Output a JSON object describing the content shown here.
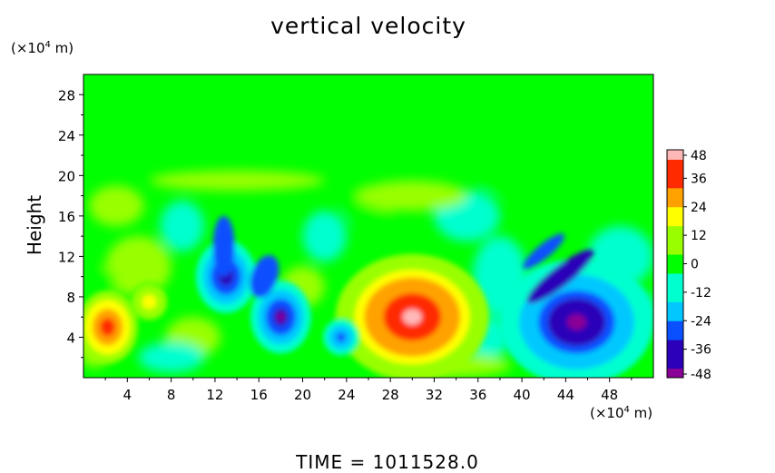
{
  "title": "vertical velocity",
  "y_unit": {
    "prefix": "(×10",
    "exp": "4",
    "suffix": " m)"
  },
  "x_unit": {
    "prefix": "(×10",
    "exp": "4",
    "suffix": " m)"
  },
  "ylabel": "Height",
  "footer": "TIME  =  1011528.0",
  "chart_data": {
    "type": "heatmap",
    "title": "vertical velocity",
    "xlabel": "",
    "ylabel": "Height",
    "x_units": "(×10^4 m)",
    "y_units": "(×10^4 m)",
    "xlim": [
      0,
      52
    ],
    "ylim": [
      0,
      30
    ],
    "x_ticks": [
      4,
      8,
      12,
      16,
      20,
      24,
      28,
      32,
      36,
      40,
      44,
      48
    ],
    "y_ticks": [
      4,
      8,
      12,
      16,
      20,
      24,
      28
    ],
    "colorbar": {
      "ticks": [
        48,
        36,
        24,
        12,
        0,
        -12,
        -24,
        -36,
        -48
      ],
      "range": [
        -48,
        48
      ],
      "stops": [
        "#8a0096",
        "#2b00b8",
        "#0a50ff",
        "#00c8ff",
        "#00ffcf",
        "#00ff00",
        "#99ff00",
        "#ffff00",
        "#ffa200",
        "#ff2a00",
        "#ffb8b8"
      ]
    },
    "features": [
      {
        "kind": "updraft",
        "x": 30,
        "z": 6,
        "peak": 48
      },
      {
        "kind": "downdraft",
        "x": 45,
        "z": 5.5,
        "peak": -48
      },
      {
        "kind": "downdraft",
        "x": 13,
        "z": 10,
        "peak": -40
      },
      {
        "kind": "downdraft",
        "x": 18,
        "z": 6,
        "peak": -44
      },
      {
        "kind": "downdraft",
        "x": 23.5,
        "z": 4,
        "peak": -32
      },
      {
        "kind": "updraft",
        "x": 2.2,
        "z": 5,
        "peak": 40
      },
      {
        "kind": "updraft",
        "x": 6,
        "z": 7.5,
        "peak": 22
      }
    ],
    "grid": false
  }
}
